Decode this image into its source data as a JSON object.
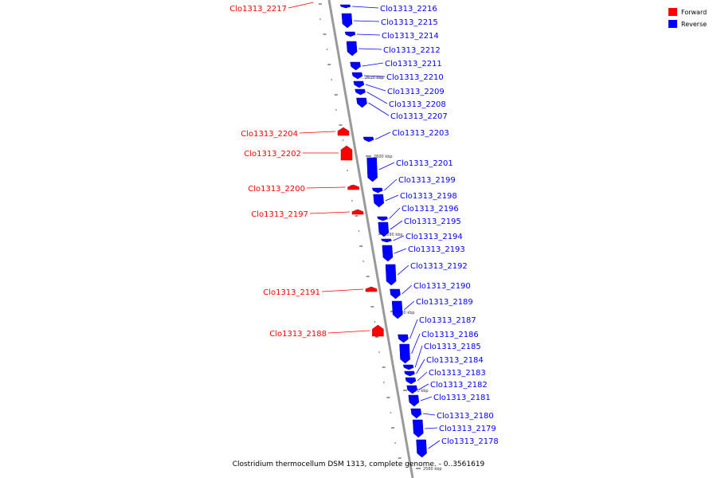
{
  "legend": {
    "items": [
      {
        "label": "Forward",
        "color": "#ff0000"
      },
      {
        "label": "Reverse",
        "color": "#0000ff"
      }
    ]
  },
  "caption": "Clostridium thermocellum DSM 1313, complete genome. - 0..3561619",
  "kbp_markers": [
    "2610 kbp",
    "2600 kbp",
    "2590 kbp",
    "2580 kbp",
    "2570 kbp",
    "2560 kbp"
  ],
  "colors": {
    "forward": "#ff0000",
    "reverse": "#0000ff",
    "backbone": "#999999"
  },
  "genes": {
    "reverse": [
      "Clo1313_2216",
      "Clo1313_2215",
      "Clo1313_2214",
      "Clo1313_2212",
      "Clo1313_2211",
      "Clo1313_2210",
      "Clo1313_2209",
      "Clo1313_2208",
      "Clo1313_2207",
      "Clo1313_2203",
      "Clo1313_2201",
      "Clo1313_2199",
      "Clo1313_2198",
      "Clo1313_2196",
      "Clo1313_2195",
      "Clo1313_2194",
      "Clo1313_2193",
      "Clo1313_2192",
      "Clo1313_2190",
      "Clo1313_2189",
      "Clo1313_2187",
      "Clo1313_2186",
      "Clo1313_2185",
      "Clo1313_2184",
      "Clo1313_2183",
      "Clo1313_2182",
      "Clo1313_2181",
      "Clo1313_2180",
      "Clo1313_2179",
      "Clo1313_2178"
    ],
    "forward": [
      "Clo1313_2217",
      "Clo1313_2204",
      "Clo1313_2202",
      "Clo1313_2200",
      "Clo1313_2197",
      "Clo1313_2191",
      "Clo1313_2188"
    ]
  }
}
